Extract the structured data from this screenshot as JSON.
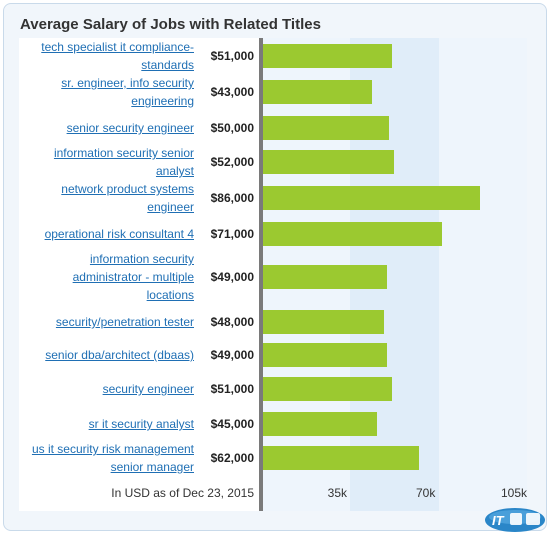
{
  "chart_data": {
    "type": "bar",
    "orientation": "horizontal",
    "title": "Average Salary of Jobs with Related Titles",
    "categories": [
      "tech specialist it compliance-standards",
      "sr. engineer, info security engineering",
      "senior security engineer",
      "information security senior analyst",
      "network product systems engineer",
      "operational risk consultant 4",
      "information security administrator - multiple locations",
      "security/penetration tester",
      "senior dba/architect (dbaas)",
      "security engineer",
      "sr it security analyst",
      "us it security risk management senior manager"
    ],
    "values": [
      51000,
      43000,
      50000,
      52000,
      86000,
      71000,
      49000,
      48000,
      49000,
      51000,
      45000,
      62000
    ],
    "value_labels": [
      "$51,000",
      "$43,000",
      "$50,000",
      "$52,000",
      "$86,000",
      "$71,000",
      "$49,000",
      "$48,000",
      "$49,000",
      "$51,000",
      "$45,000",
      "$62,000"
    ],
    "xlim": [
      0,
      105000
    ],
    "x_ticks": [
      35000,
      70000,
      105000
    ],
    "x_tick_labels": [
      "35k",
      "70k",
      "105k"
    ],
    "footnote": "In USD as of Dec 23, 2015",
    "colors": {
      "bar": "#9bc930",
      "title_link": "#1f6fb4",
      "band_light": "#eef5fc",
      "band_mid": "#e0edf9",
      "band_high": "#eef5fc",
      "background": "#f1f6fb"
    }
  },
  "watermark": {
    "label": "IT邦幫忙"
  }
}
